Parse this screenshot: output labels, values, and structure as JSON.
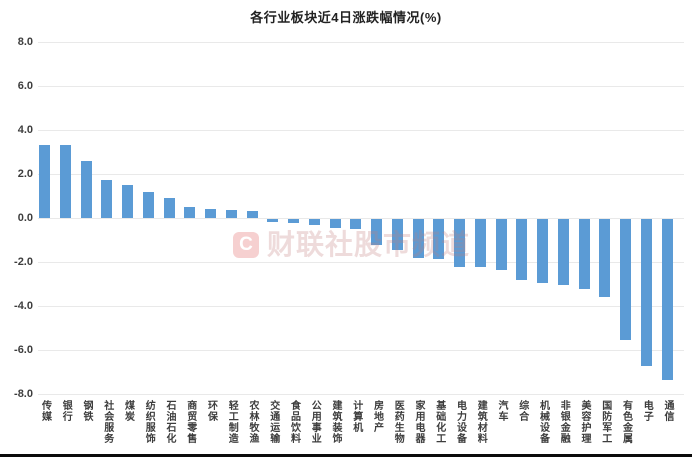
{
  "title": "各行业板块近4日涨跌幅情况(%)",
  "watermark": {
    "logo_letter": "C",
    "text": "财联社股市频道"
  },
  "colors": {
    "bar": "#5B9BD5",
    "gridline": "#e9e9e9",
    "axis_text": "#3d3d3d",
    "title_text": "#222222",
    "watermark_pink": "#e5a5a5",
    "bottom_rule": "#0a0a0a"
  },
  "chart_data": {
    "type": "bar",
    "title": "各行业板块近4日涨跌幅情况(%)",
    "categories": [
      "传媒",
      "银行",
      "钢铁",
      "社会服务",
      "煤炭",
      "纺织服饰",
      "石油石化",
      "商贸零售",
      "环保",
      "轻工制造",
      "农林牧渔",
      "交通运输",
      "食品饮料",
      "公用事业",
      "建筑装饰",
      "计算机",
      "房地产",
      "医药生物",
      "家用电器",
      "基础化工",
      "电力设备",
      "建筑材料",
      "汽车",
      "综合",
      "机械设备",
      "非银金融",
      "美容护理",
      "国防军工",
      "有色金属",
      "电子",
      "通信"
    ],
    "values": [
      3.3,
      3.3,
      2.6,
      1.75,
      1.5,
      1.2,
      0.9,
      0.5,
      0.4,
      0.35,
      0.3,
      -0.15,
      -0.2,
      -0.25,
      -0.4,
      -0.45,
      -1.2,
      -1.4,
      -1.75,
      -1.8,
      -2.2,
      -2.2,
      -2.3,
      -2.75,
      -2.9,
      -3.0,
      -3.2,
      -3.55,
      -5.5,
      -6.7,
      -7.3
    ],
    "xlabel": "",
    "ylabel": "",
    "ylim": [
      -8.0,
      8.0
    ],
    "y_ticks": [
      "8.0",
      "6.0",
      "4.0",
      "2.0",
      "0.0",
      "-2.0",
      "-4.0",
      "-6.0",
      "-8.0"
    ],
    "grid": true,
    "legend": false,
    "bar_color": "#5B9BD5"
  }
}
